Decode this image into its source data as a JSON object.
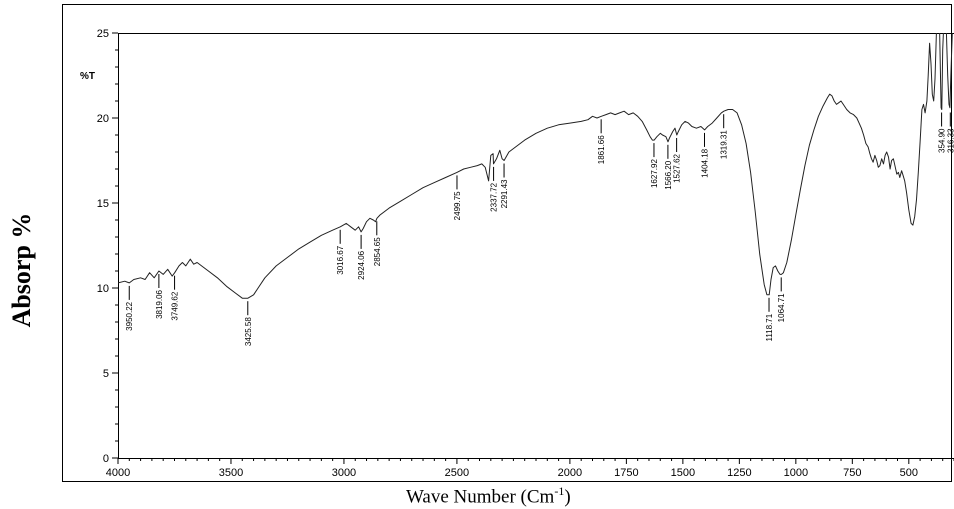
{
  "chart_data": {
    "type": "line",
    "title": "",
    "y_unit_label": "%T",
    "outer_ylabel": "Absorp %",
    "xlabel": {
      "base": "Wave Number (Cm",
      "sup": "-1",
      "tail": ")"
    },
    "xlim": [
      4000,
      300
    ],
    "ylim": [
      0,
      25
    ],
    "x_ticks": [
      4000,
      3500,
      3000,
      2500,
      2000,
      1750,
      1500,
      1250,
      1000,
      750,
      500
    ],
    "x_tick_labels": [
      "4000",
      "3500",
      "3000",
      "2500",
      "2000",
      "1750",
      "1500",
      "1250",
      "1000",
      "750",
      "500"
    ],
    "y_ticks": [
      0,
      5,
      10,
      15,
      20,
      25
    ],
    "y_tick_labels": [
      "0",
      "5",
      "10",
      "15",
      "20",
      "25"
    ],
    "grid": false,
    "series": [
      {
        "color": "#222222",
        "points": [
          [
            4000,
            10.3
          ],
          [
            3970,
            10.4
          ],
          [
            3950,
            10.3
          ],
          [
            3930,
            10.5
          ],
          [
            3900,
            10.6
          ],
          [
            3880,
            10.5
          ],
          [
            3860,
            10.9
          ],
          [
            3840,
            10.6
          ],
          [
            3819,
            11.0
          ],
          [
            3800,
            10.8
          ],
          [
            3780,
            11.1
          ],
          [
            3760,
            10.7
          ],
          [
            3749,
            10.9
          ],
          [
            3730,
            11.3
          ],
          [
            3715,
            11.5
          ],
          [
            3700,
            11.3
          ],
          [
            3680,
            11.7
          ],
          [
            3665,
            11.4
          ],
          [
            3650,
            11.5
          ],
          [
            3620,
            11.2
          ],
          [
            3600,
            11.0
          ],
          [
            3560,
            10.6
          ],
          [
            3520,
            10.1
          ],
          [
            3480,
            9.7
          ],
          [
            3450,
            9.4
          ],
          [
            3425,
            9.4
          ],
          [
            3400,
            9.6
          ],
          [
            3380,
            10.0
          ],
          [
            3350,
            10.6
          ],
          [
            3300,
            11.3
          ],
          [
            3250,
            11.8
          ],
          [
            3200,
            12.3
          ],
          [
            3150,
            12.7
          ],
          [
            3100,
            13.1
          ],
          [
            3050,
            13.4
          ],
          [
            3016,
            13.6
          ],
          [
            2990,
            13.8
          ],
          [
            2970,
            13.6
          ],
          [
            2950,
            13.4
          ],
          [
            2935,
            13.6
          ],
          [
            2924,
            13.3
          ],
          [
            2915,
            13.5
          ],
          [
            2900,
            13.9
          ],
          [
            2885,
            14.1
          ],
          [
            2870,
            14.0
          ],
          [
            2860,
            13.9
          ],
          [
            2854,
            14.1
          ],
          [
            2840,
            14.3
          ],
          [
            2800,
            14.7
          ],
          [
            2750,
            15.1
          ],
          [
            2700,
            15.5
          ],
          [
            2650,
            15.9
          ],
          [
            2600,
            16.2
          ],
          [
            2550,
            16.5
          ],
          [
            2500,
            16.8
          ],
          [
            2470,
            17.0
          ],
          [
            2440,
            17.1
          ],
          [
            2410,
            17.2
          ],
          [
            2390,
            17.3
          ],
          [
            2375,
            17.1
          ],
          [
            2360,
            16.3
          ],
          [
            2350,
            17.8
          ],
          [
            2340,
            17.9
          ],
          [
            2338,
            17.3
          ],
          [
            2325,
            17.6
          ],
          [
            2310,
            18.1
          ],
          [
            2300,
            17.6
          ],
          [
            2291,
            17.5
          ],
          [
            2270,
            18.0
          ],
          [
            2240,
            18.3
          ],
          [
            2200,
            18.7
          ],
          [
            2150,
            19.1
          ],
          [
            2100,
            19.4
          ],
          [
            2050,
            19.6
          ],
          [
            2000,
            19.7
          ],
          [
            1950,
            19.8
          ],
          [
            1920,
            19.9
          ],
          [
            1900,
            20.1
          ],
          [
            1880,
            20.0
          ],
          [
            1861,
            20.1
          ],
          [
            1840,
            20.2
          ],
          [
            1820,
            20.3
          ],
          [
            1800,
            20.2
          ],
          [
            1780,
            20.3
          ],
          [
            1760,
            20.4
          ],
          [
            1740,
            20.2
          ],
          [
            1720,
            20.3
          ],
          [
            1700,
            20.1
          ],
          [
            1680,
            19.8
          ],
          [
            1660,
            19.3
          ],
          [
            1645,
            18.9
          ],
          [
            1635,
            18.7
          ],
          [
            1627,
            18.7
          ],
          [
            1615,
            18.9
          ],
          [
            1600,
            19.1
          ],
          [
            1590,
            19.0
          ],
          [
            1575,
            18.9
          ],
          [
            1566,
            18.6
          ],
          [
            1560,
            18.8
          ],
          [
            1545,
            19.2
          ],
          [
            1535,
            19.4
          ],
          [
            1527,
            19.0
          ],
          [
            1520,
            19.2
          ],
          [
            1505,
            19.6
          ],
          [
            1490,
            19.8
          ],
          [
            1475,
            19.7
          ],
          [
            1460,
            19.5
          ],
          [
            1440,
            19.4
          ],
          [
            1420,
            19.5
          ],
          [
            1404,
            19.3
          ],
          [
            1390,
            19.5
          ],
          [
            1370,
            19.7
          ],
          [
            1350,
            20.0
          ],
          [
            1330,
            20.3
          ],
          [
            1319,
            20.4
          ],
          [
            1300,
            20.5
          ],
          [
            1280,
            20.5
          ],
          [
            1260,
            20.3
          ],
          [
            1240,
            19.6
          ],
          [
            1220,
            18.5
          ],
          [
            1200,
            16.8
          ],
          [
            1180,
            14.5
          ],
          [
            1160,
            12.0
          ],
          [
            1140,
            10.2
          ],
          [
            1128,
            9.6
          ],
          [
            1118,
            9.6
          ],
          [
            1110,
            10.5
          ],
          [
            1100,
            11.2
          ],
          [
            1090,
            11.3
          ],
          [
            1080,
            11.0
          ],
          [
            1070,
            10.8
          ],
          [
            1064,
            10.8
          ],
          [
            1055,
            10.9
          ],
          [
            1040,
            11.5
          ],
          [
            1020,
            12.8
          ],
          [
            1000,
            14.3
          ],
          [
            980,
            15.8
          ],
          [
            960,
            17.2
          ],
          [
            940,
            18.4
          ],
          [
            920,
            19.3
          ],
          [
            900,
            20.1
          ],
          [
            880,
            20.7
          ],
          [
            860,
            21.2
          ],
          [
            850,
            21.4
          ],
          [
            840,
            21.3
          ],
          [
            830,
            21.0
          ],
          [
            820,
            20.8
          ],
          [
            810,
            20.9
          ],
          [
            800,
            21.0
          ],
          [
            790,
            20.8
          ],
          [
            775,
            20.5
          ],
          [
            760,
            20.3
          ],
          [
            745,
            20.2
          ],
          [
            730,
            20.0
          ],
          [
            720,
            19.7
          ],
          [
            710,
            19.4
          ],
          [
            700,
            19.0
          ],
          [
            690,
            18.5
          ],
          [
            680,
            18.3
          ],
          [
            672,
            17.9
          ],
          [
            665,
            17.6
          ],
          [
            658,
            17.4
          ],
          [
            650,
            17.8
          ],
          [
            642,
            17.5
          ],
          [
            635,
            17.1
          ],
          [
            628,
            17.2
          ],
          [
            620,
            17.6
          ],
          [
            612,
            17.3
          ],
          [
            605,
            17.8
          ],
          [
            598,
            18.0
          ],
          [
            590,
            17.7
          ],
          [
            583,
            17.0
          ],
          [
            576,
            17.5
          ],
          [
            568,
            17.6
          ],
          [
            560,
            17.1
          ],
          [
            553,
            16.7
          ],
          [
            546,
            16.8
          ],
          [
            540,
            16.5
          ],
          [
            532,
            16.9
          ],
          [
            525,
            16.6
          ],
          [
            518,
            16.3
          ],
          [
            510,
            15.6
          ],
          [
            500,
            14.6
          ],
          [
            490,
            13.8
          ],
          [
            482,
            13.7
          ],
          [
            474,
            14.2
          ],
          [
            466,
            15.2
          ],
          [
            458,
            16.8
          ],
          [
            450,
            18.6
          ],
          [
            442,
            20.5
          ],
          [
            435,
            20.8
          ],
          [
            428,
            20.3
          ],
          [
            420,
            21.0
          ],
          [
            414,
            22.5
          ],
          [
            408,
            24.4
          ],
          [
            402,
            23.2
          ],
          [
            396,
            21.4
          ],
          [
            390,
            21.0
          ],
          [
            384,
            22.3
          ],
          [
            378,
            25.0
          ],
          [
            370,
            26.0
          ],
          [
            364,
            25.5
          ],
          [
            357,
            20.6
          ],
          [
            354,
            20.5
          ],
          [
            350,
            24.0
          ],
          [
            344,
            26.0
          ],
          [
            336,
            26.0
          ],
          [
            328,
            22.5
          ],
          [
            322,
            20.8
          ],
          [
            318,
            20.6
          ],
          [
            314,
            22.4
          ],
          [
            310,
            24.0
          ],
          [
            306,
            25.5
          ],
          [
            302,
            26.0
          ],
          [
            300,
            26.0
          ]
        ]
      }
    ],
    "peaks": [
      {
        "x": 3950.22,
        "label": "3950.22",
        "y": 10.3,
        "dir": "down"
      },
      {
        "x": 3819.06,
        "label": "3819.06",
        "y": 11.0,
        "dir": "down"
      },
      {
        "x": 3749.62,
        "label": "3749.62",
        "y": 10.9,
        "dir": "down"
      },
      {
        "x": 3425.58,
        "label": "3425.58",
        "y": 9.4,
        "dir": "down"
      },
      {
        "x": 3016.67,
        "label": "3016.67",
        "y": 13.6,
        "dir": "down"
      },
      {
        "x": 2924.06,
        "label": "2924.06",
        "y": 13.3,
        "dir": "down"
      },
      {
        "x": 2854.65,
        "label": "2854.65",
        "y": 14.1,
        "dir": "down"
      },
      {
        "x": 2499.75,
        "label": "2499.75",
        "y": 16.8,
        "dir": "down"
      },
      {
        "x": 2337.72,
        "label": "2337.72",
        "y": 17.3,
        "dir": "down"
      },
      {
        "x": 2291.43,
        "label": "2291.43",
        "y": 17.5,
        "dir": "down"
      },
      {
        "x": 1861.66,
        "label": "1861.66",
        "y": 20.1,
        "dir": "down"
      },
      {
        "x": 1627.92,
        "label": "1627.92",
        "y": 18.7,
        "dir": "down"
      },
      {
        "x": 1566.2,
        "label": "1566.20",
        "y": 18.6,
        "dir": "down"
      },
      {
        "x": 1527.62,
        "label": "1527.62",
        "y": 19.0,
        "dir": "down"
      },
      {
        "x": 1404.18,
        "label": "1404.18",
        "y": 19.3,
        "dir": "down"
      },
      {
        "x": 1319.31,
        "label": "1319.31",
        "y": 20.4,
        "dir": "down"
      },
      {
        "x": 1118.71,
        "label": "1118.71",
        "y": 9.6,
        "dir": "down"
      },
      {
        "x": 1064.71,
        "label": "1064.71",
        "y": 10.8,
        "dir": "down"
      },
      {
        "x": 354.9,
        "label": "354.90",
        "y": 20.5,
        "dir": "down"
      },
      {
        "x": 316.33,
        "label": "316.33",
        "y": 20.5,
        "dir": "down"
      }
    ]
  }
}
